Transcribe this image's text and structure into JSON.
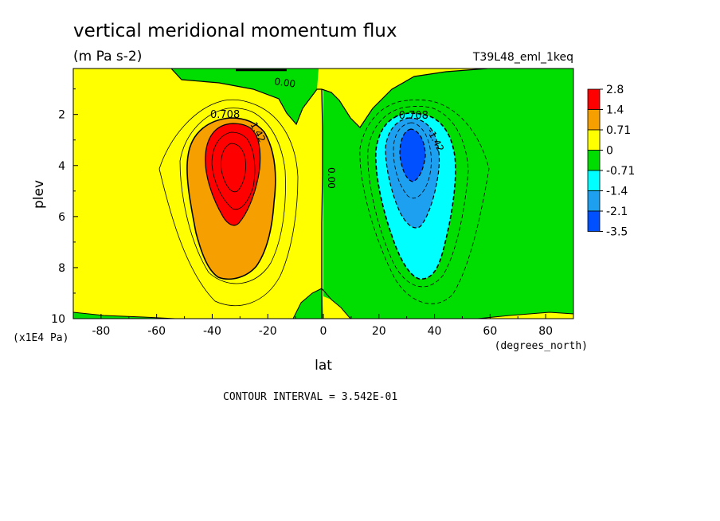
{
  "title": "vertical meridional momentum flux",
  "units": "(m Pa s-2)",
  "dataset": "T39L48_eml_1keq",
  "xlabel": "lat",
  "ylabel": "plev",
  "x_units": "(degrees_north)",
  "y_units": "(x1E4 Pa)",
  "contour_interval_text": "CONTOUR INTERVAL = 3.542E-01",
  "colors": {
    "red": "#ff0000",
    "orange": "#f5a000",
    "yellow": "#ffff00",
    "green": "#00dd00",
    "cyan": "#00ffff",
    "lightblue": "#1ea0f0",
    "blue": "#0050ff"
  },
  "chart_data": {
    "type": "heatmap",
    "subtype": "filled-contour",
    "x": {
      "name": "lat",
      "range": [
        -90,
        90
      ],
      "ticks": [
        -80,
        -60,
        -40,
        -20,
        0,
        20,
        40,
        60,
        80
      ],
      "tick_labels": [
        "-80",
        "-60",
        "-40",
        "-20",
        "0",
        "20",
        "40",
        "60",
        "80"
      ]
    },
    "y": {
      "name": "plev",
      "range": [
        0.2,
        10
      ],
      "inverted": true,
      "ticks": [
        2,
        4,
        6,
        8,
        10
      ],
      "tick_labels": [
        "2",
        "4",
        "6",
        "8",
        "10"
      ]
    },
    "colorbar": {
      "labels": [
        "2.8",
        "1.4",
        "0.71",
        "0",
        "-0.71",
        "-1.4",
        "-2.1",
        "-3.5"
      ],
      "colors": [
        "#ff0000",
        "#f5a000",
        "#ffff00",
        "#00dd00",
        "#00ffff",
        "#1ea0f0",
        "#0050ff"
      ]
    },
    "contour_labels": [
      "0.00",
      "0.708",
      "1.42",
      "0.00",
      "-0.708",
      "-1.42"
    ],
    "features": [
      {
        "name": "positive lobe",
        "lat_center": -32,
        "plev_center": 4,
        "max_band": "1.4 to 2.8",
        "sign": "positive"
      },
      {
        "name": "negative lobe",
        "lat_center": 32,
        "plev_center": 4,
        "min_band": "-3.5 to -2.1",
        "sign": "negative"
      }
    ]
  }
}
